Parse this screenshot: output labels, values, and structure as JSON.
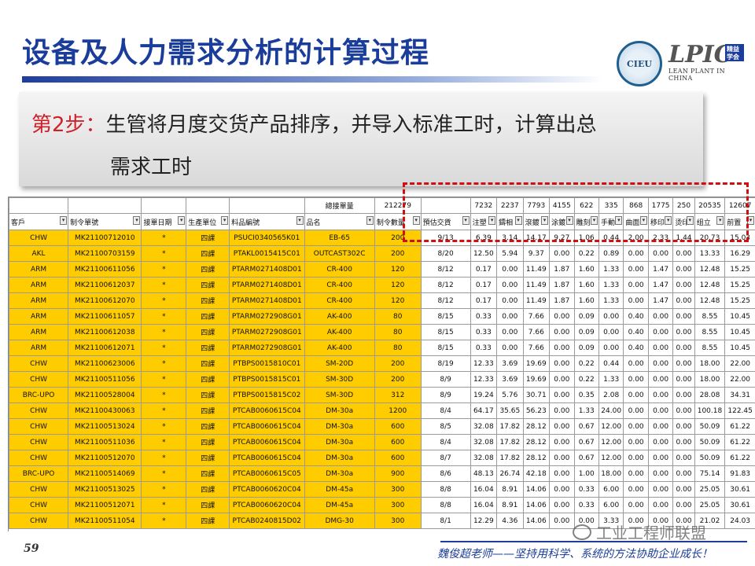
{
  "slide": {
    "title": "设备及人力需求分析的计算过程",
    "step_label": "第2步：",
    "step_text_line1": "生管将月度交货产品排序，并导入标准工时，计算出总",
    "step_text_line2": "需求工时",
    "page_number": "59",
    "footer": "魏俊超老师——坚持用科学、系统的方法协助企业成长！",
    "watermark": "工业工程师联盟"
  },
  "logos": {
    "circle_text": "CIEU",
    "lpic_text": "LPIC",
    "lpic_tag": "精益\n学会",
    "lpic_sub": "LEAN PLANT IN CHINA"
  },
  "sheet": {
    "total_row": {
      "label": "總接單量",
      "total": "212279",
      "process_totals": [
        "7232",
        "2237",
        "7793",
        "4155",
        "622",
        "335",
        "868",
        "1775",
        "250",
        "20535",
        "12607"
      ]
    },
    "headers": [
      "客戶",
      "制令單號",
      "接單日期",
      "生產單位",
      "料品編號",
      "品名",
      "制令數量",
      "預估交貨",
      "注塑",
      "鑄相",
      "滾鍍",
      "涂鍍",
      "雕刻",
      "手動",
      "曲面",
      "移印",
      "烫印",
      "组立",
      "前置"
    ],
    "rows": [
      [
        "CHW",
        "MK21100712010",
        "*",
        "四課",
        "PSUCI0340565K01",
        "EB-65",
        "200",
        "9/13",
        "6.39",
        "3.14",
        "14.17",
        "9.27",
        "1.06",
        "0.44",
        "2.00",
        "2.33",
        "1.44",
        "20.73",
        "15.03"
      ],
      [
        "AKL",
        "MK21100703159",
        "*",
        "四課",
        "PTAKL0015415C01",
        "OUTCAST302C",
        "200",
        "8/20",
        "12.50",
        "5.94",
        "9.37",
        "0.00",
        "0.22",
        "0.89",
        "0.00",
        "0.00",
        "0.00",
        "13.33",
        "16.29"
      ],
      [
        "ARM",
        "MK21100611056",
        "*",
        "四課",
        "PTARM0271408D01",
        "CR-400",
        "120",
        "8/12",
        "0.17",
        "0.00",
        "11.49",
        "1.87",
        "1.60",
        "1.33",
        "0.00",
        "1.47",
        "0.00",
        "12.48",
        "15.25"
      ],
      [
        "ARM",
        "MK21100612037",
        "*",
        "四課",
        "PTARM0271408D01",
        "CR-400",
        "120",
        "8/12",
        "0.17",
        "0.00",
        "11.49",
        "1.87",
        "1.60",
        "1.33",
        "0.00",
        "1.47",
        "0.00",
        "12.48",
        "15.25"
      ],
      [
        "ARM",
        "MK21100612070",
        "*",
        "四課",
        "PTARM0271408D01",
        "CR-400",
        "120",
        "8/12",
        "0.17",
        "0.00",
        "11.49",
        "1.87",
        "1.60",
        "1.33",
        "0.00",
        "1.47",
        "0.00",
        "12.48",
        "15.25"
      ],
      [
        "ARM",
        "MK21100611057",
        "*",
        "四課",
        "PTARM0272908G01",
        "AK-400",
        "80",
        "8/15",
        "0.33",
        "0.00",
        "7.66",
        "0.00",
        "0.09",
        "0.00",
        "0.40",
        "0.00",
        "0.00",
        "8.55",
        "10.45"
      ],
      [
        "ARM",
        "MK21100612038",
        "*",
        "四課",
        "PTARM0272908G01",
        "AK-400",
        "80",
        "8/15",
        "0.33",
        "0.00",
        "7.66",
        "0.00",
        "0.09",
        "0.00",
        "0.40",
        "0.00",
        "0.00",
        "8.55",
        "10.45"
      ],
      [
        "ARM",
        "MK21100612071",
        "*",
        "四課",
        "PTARM0272908G01",
        "AK-400",
        "80",
        "8/15",
        "0.33",
        "0.00",
        "7.66",
        "0.00",
        "0.09",
        "0.00",
        "0.40",
        "0.00",
        "0.00",
        "8.55",
        "10.45"
      ],
      [
        "CHW",
        "MK21100623006",
        "*",
        "四課",
        "PTBPS0015810C01",
        "SM-20D",
        "200",
        "8/19",
        "12.33",
        "3.69",
        "19.69",
        "0.00",
        "0.22",
        "0.44",
        "0.00",
        "0.00",
        "0.00",
        "18.00",
        "22.00"
      ],
      [
        "CHW",
        "MK21100511056",
        "*",
        "四課",
        "PTBPS0015815C01",
        "SM-30D",
        "200",
        "8/9",
        "12.33",
        "3.69",
        "19.69",
        "0.00",
        "0.22",
        "1.33",
        "0.00",
        "0.00",
        "0.00",
        "18.00",
        "22.00"
      ],
      [
        "BRC-UPO",
        "MK21100528004",
        "*",
        "四課",
        "PTBPS0015815C02",
        "SM-30D",
        "312",
        "8/9",
        "19.24",
        "5.76",
        "30.71",
        "0.00",
        "0.35",
        "2.08",
        "0.00",
        "0.00",
        "0.00",
        "28.08",
        "34.31"
      ],
      [
        "CHW",
        "MK21100430063",
        "*",
        "四課",
        "PTCAB0060615C04",
        "DM-30a",
        "1200",
        "8/4",
        "64.17",
        "35.65",
        "56.23",
        "0.00",
        "1.33",
        "24.00",
        "0.00",
        "0.00",
        "0.00",
        "100.18",
        "122.45"
      ],
      [
        "CHW",
        "MK21100513024",
        "*",
        "四課",
        "PTCAB0060615C04",
        "DM-30a",
        "600",
        "8/5",
        "32.08",
        "17.82",
        "28.12",
        "0.00",
        "0.67",
        "12.00",
        "0.00",
        "0.00",
        "0.00",
        "50.09",
        "61.22"
      ],
      [
        "CHW",
        "MK21100511036",
        "*",
        "四課",
        "PTCAB0060615C04",
        "DM-30a",
        "600",
        "8/4",
        "32.08",
        "17.82",
        "28.12",
        "0.00",
        "0.67",
        "12.00",
        "0.00",
        "0.00",
        "0.00",
        "50.09",
        "61.22"
      ],
      [
        "CHW",
        "MK21100512070",
        "*",
        "四課",
        "PTCAB0060615C04",
        "DM-30a",
        "600",
        "8/7",
        "32.08",
        "17.82",
        "28.12",
        "0.00",
        "0.67",
        "12.00",
        "0.00",
        "0.00",
        "0.00",
        "50.09",
        "61.22"
      ],
      [
        "BRC-UPO",
        "MK21100514069",
        "*",
        "四課",
        "PTCAB0060615C05",
        "DM-30a",
        "900",
        "8/6",
        "48.13",
        "26.74",
        "42.18",
        "0.00",
        "1.00",
        "18.00",
        "0.00",
        "0.00",
        "0.00",
        "75.14",
        "91.83"
      ],
      [
        "CHW",
        "MK21100513025",
        "*",
        "四課",
        "PTCAB0060620C04",
        "DM-45a",
        "300",
        "8/8",
        "16.04",
        "8.91",
        "14.06",
        "0.00",
        "0.33",
        "6.00",
        "0.00",
        "0.00",
        "0.00",
        "25.05",
        "30.61"
      ],
      [
        "CHW",
        "MK21100512071",
        "*",
        "四課",
        "PTCAB0060620C04",
        "DM-45a",
        "300",
        "8/8",
        "16.04",
        "8.91",
        "14.06",
        "0.00",
        "0.33",
        "6.00",
        "0.00",
        "0.00",
        "0.00",
        "25.05",
        "30.61"
      ],
      [
        "CHW",
        "MK21100511054",
        "*",
        "四課",
        "PTCAB0240815D02",
        "DMG-30",
        "300",
        "8/1",
        "12.29",
        "4.36",
        "14.06",
        "0.00",
        "0.00",
        "3.33",
        "0.00",
        "0.00",
        "0.00",
        "21.02",
        "24.03"
      ]
    ]
  }
}
